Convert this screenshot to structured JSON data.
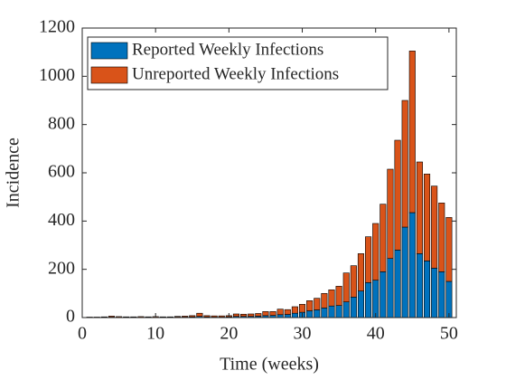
{
  "chart_data": {
    "type": "bar",
    "stacked": true,
    "x_label": "Time  (weeks)",
    "y_label": "Incidence",
    "x": [
      1,
      2,
      3,
      4,
      5,
      6,
      7,
      8,
      9,
      10,
      11,
      12,
      13,
      14,
      15,
      16,
      17,
      18,
      19,
      20,
      21,
      22,
      23,
      24,
      25,
      26,
      27,
      28,
      29,
      30,
      31,
      32,
      33,
      34,
      35,
      36,
      37,
      38,
      39,
      40,
      41,
      42,
      43,
      44,
      45,
      46,
      47,
      48,
      49,
      50
    ],
    "series": [
      {
        "name": "Reported Weekly Infections",
        "color": "#0072bd",
        "values": [
          1,
          1,
          1,
          2,
          1,
          1,
          1,
          1,
          1,
          1,
          1,
          1,
          2,
          2,
          3,
          5,
          3,
          2,
          2,
          3,
          5,
          5,
          5,
          6,
          8,
          9,
          12,
          13,
          18,
          22,
          28,
          32,
          40,
          48,
          50,
          65,
          85,
          110,
          145,
          155,
          190,
          245,
          280,
          375,
          435,
          265,
          235,
          205,
          190,
          150
        ]
      },
      {
        "name": "Unreported Weekly Infections",
        "color": "#d95319",
        "values": [
          1,
          1,
          2,
          4,
          3,
          2,
          2,
          3,
          2,
          3,
          2,
          2,
          3,
          4,
          5,
          13,
          5,
          5,
          5,
          5,
          10,
          9,
          10,
          11,
          17,
          16,
          23,
          20,
          27,
          33,
          42,
          48,
          60,
          67,
          80,
          120,
          130,
          155,
          190,
          235,
          280,
          370,
          455,
          525,
          670,
          380,
          360,
          340,
          285,
          265
        ]
      }
    ],
    "xlim": [
      0,
      51
    ],
    "xticks": [
      0,
      10,
      20,
      30,
      40,
      50
    ],
    "ylim": [
      0,
      1200
    ],
    "yticks": [
      0,
      200,
      400,
      600,
      800,
      1000,
      1200
    ],
    "legend": "upper left"
  }
}
